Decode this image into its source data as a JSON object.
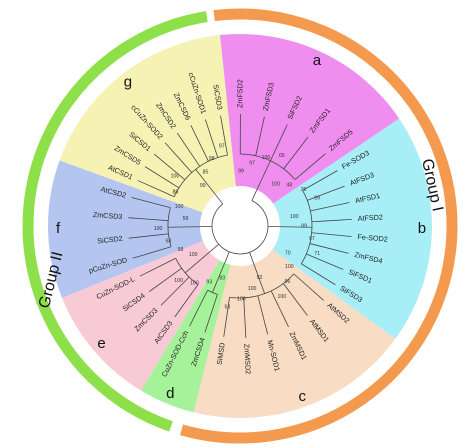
{
  "groups": [
    {
      "id": "group1",
      "label": "Group I",
      "color": "#f39a4e"
    },
    {
      "id": "group2",
      "label": "Group II",
      "color": "#8ee04a"
    }
  ],
  "clades": [
    {
      "id": "a",
      "letter": "a",
      "color": "#f08ef0",
      "leaves": [
        "ZmFSD2",
        "ZmFSD3",
        "SiFSD2",
        "ZmFSD1",
        "ZmFSD5"
      ]
    },
    {
      "id": "b",
      "letter": "b",
      "color": "#a8eef6",
      "leaves": [
        "Fe-SOD3",
        "AtFSD3",
        "AtFSD1",
        "AtFSD2",
        "Fe-SOD2",
        "ZmFSD4",
        "SiFSD1",
        "SiFSD3"
      ]
    },
    {
      "id": "c",
      "letter": "c",
      "color": "#f8dcc4",
      "leaves": [
        "AtMSD2",
        "AtMSD1",
        "ZmMSD1",
        "Mn-SOD1",
        "ZmMSD2",
        "SiMSD"
      ]
    },
    {
      "id": "d",
      "letter": "d",
      "color": "#a6f29a",
      "leaves": [
        "ZmCSD4",
        "CuZn-SOD-Cch"
      ]
    },
    {
      "id": "e",
      "letter": "e",
      "color": "#f8cad6",
      "leaves": [
        "AtCSD3",
        "ZmCSD3",
        "SiCSD4",
        "CuZn-SOD-L"
      ]
    },
    {
      "id": "f",
      "letter": "f",
      "color": "#b4c6f0",
      "leaves": [
        "pCuZn-SOD",
        "SiCSD2",
        "ZmCSD3",
        "AtCSD2"
      ]
    },
    {
      "id": "g",
      "letter": "g",
      "color": "#f6f2b4",
      "leaves": [
        "AtCSD1",
        "ZmCSD5",
        "SiCSD1",
        "cCuZn-SOD2",
        "ZmCSD2",
        "ZmCSD6",
        "cCuZn-SOD1",
        "SiCSD3"
      ]
    }
  ],
  "bootstrap_values": [
    "99",
    "97",
    "100",
    "65",
    "100",
    "48",
    "76",
    "89",
    "100",
    "99",
    "97",
    "71",
    "70",
    "100",
    "96",
    "100",
    "92",
    "100",
    "100",
    "53",
    "83",
    "93",
    "100",
    "100",
    "100",
    "98",
    "63",
    "100",
    "59",
    "100",
    "88",
    "100",
    "99",
    "85",
    "98",
    "97"
  ]
}
